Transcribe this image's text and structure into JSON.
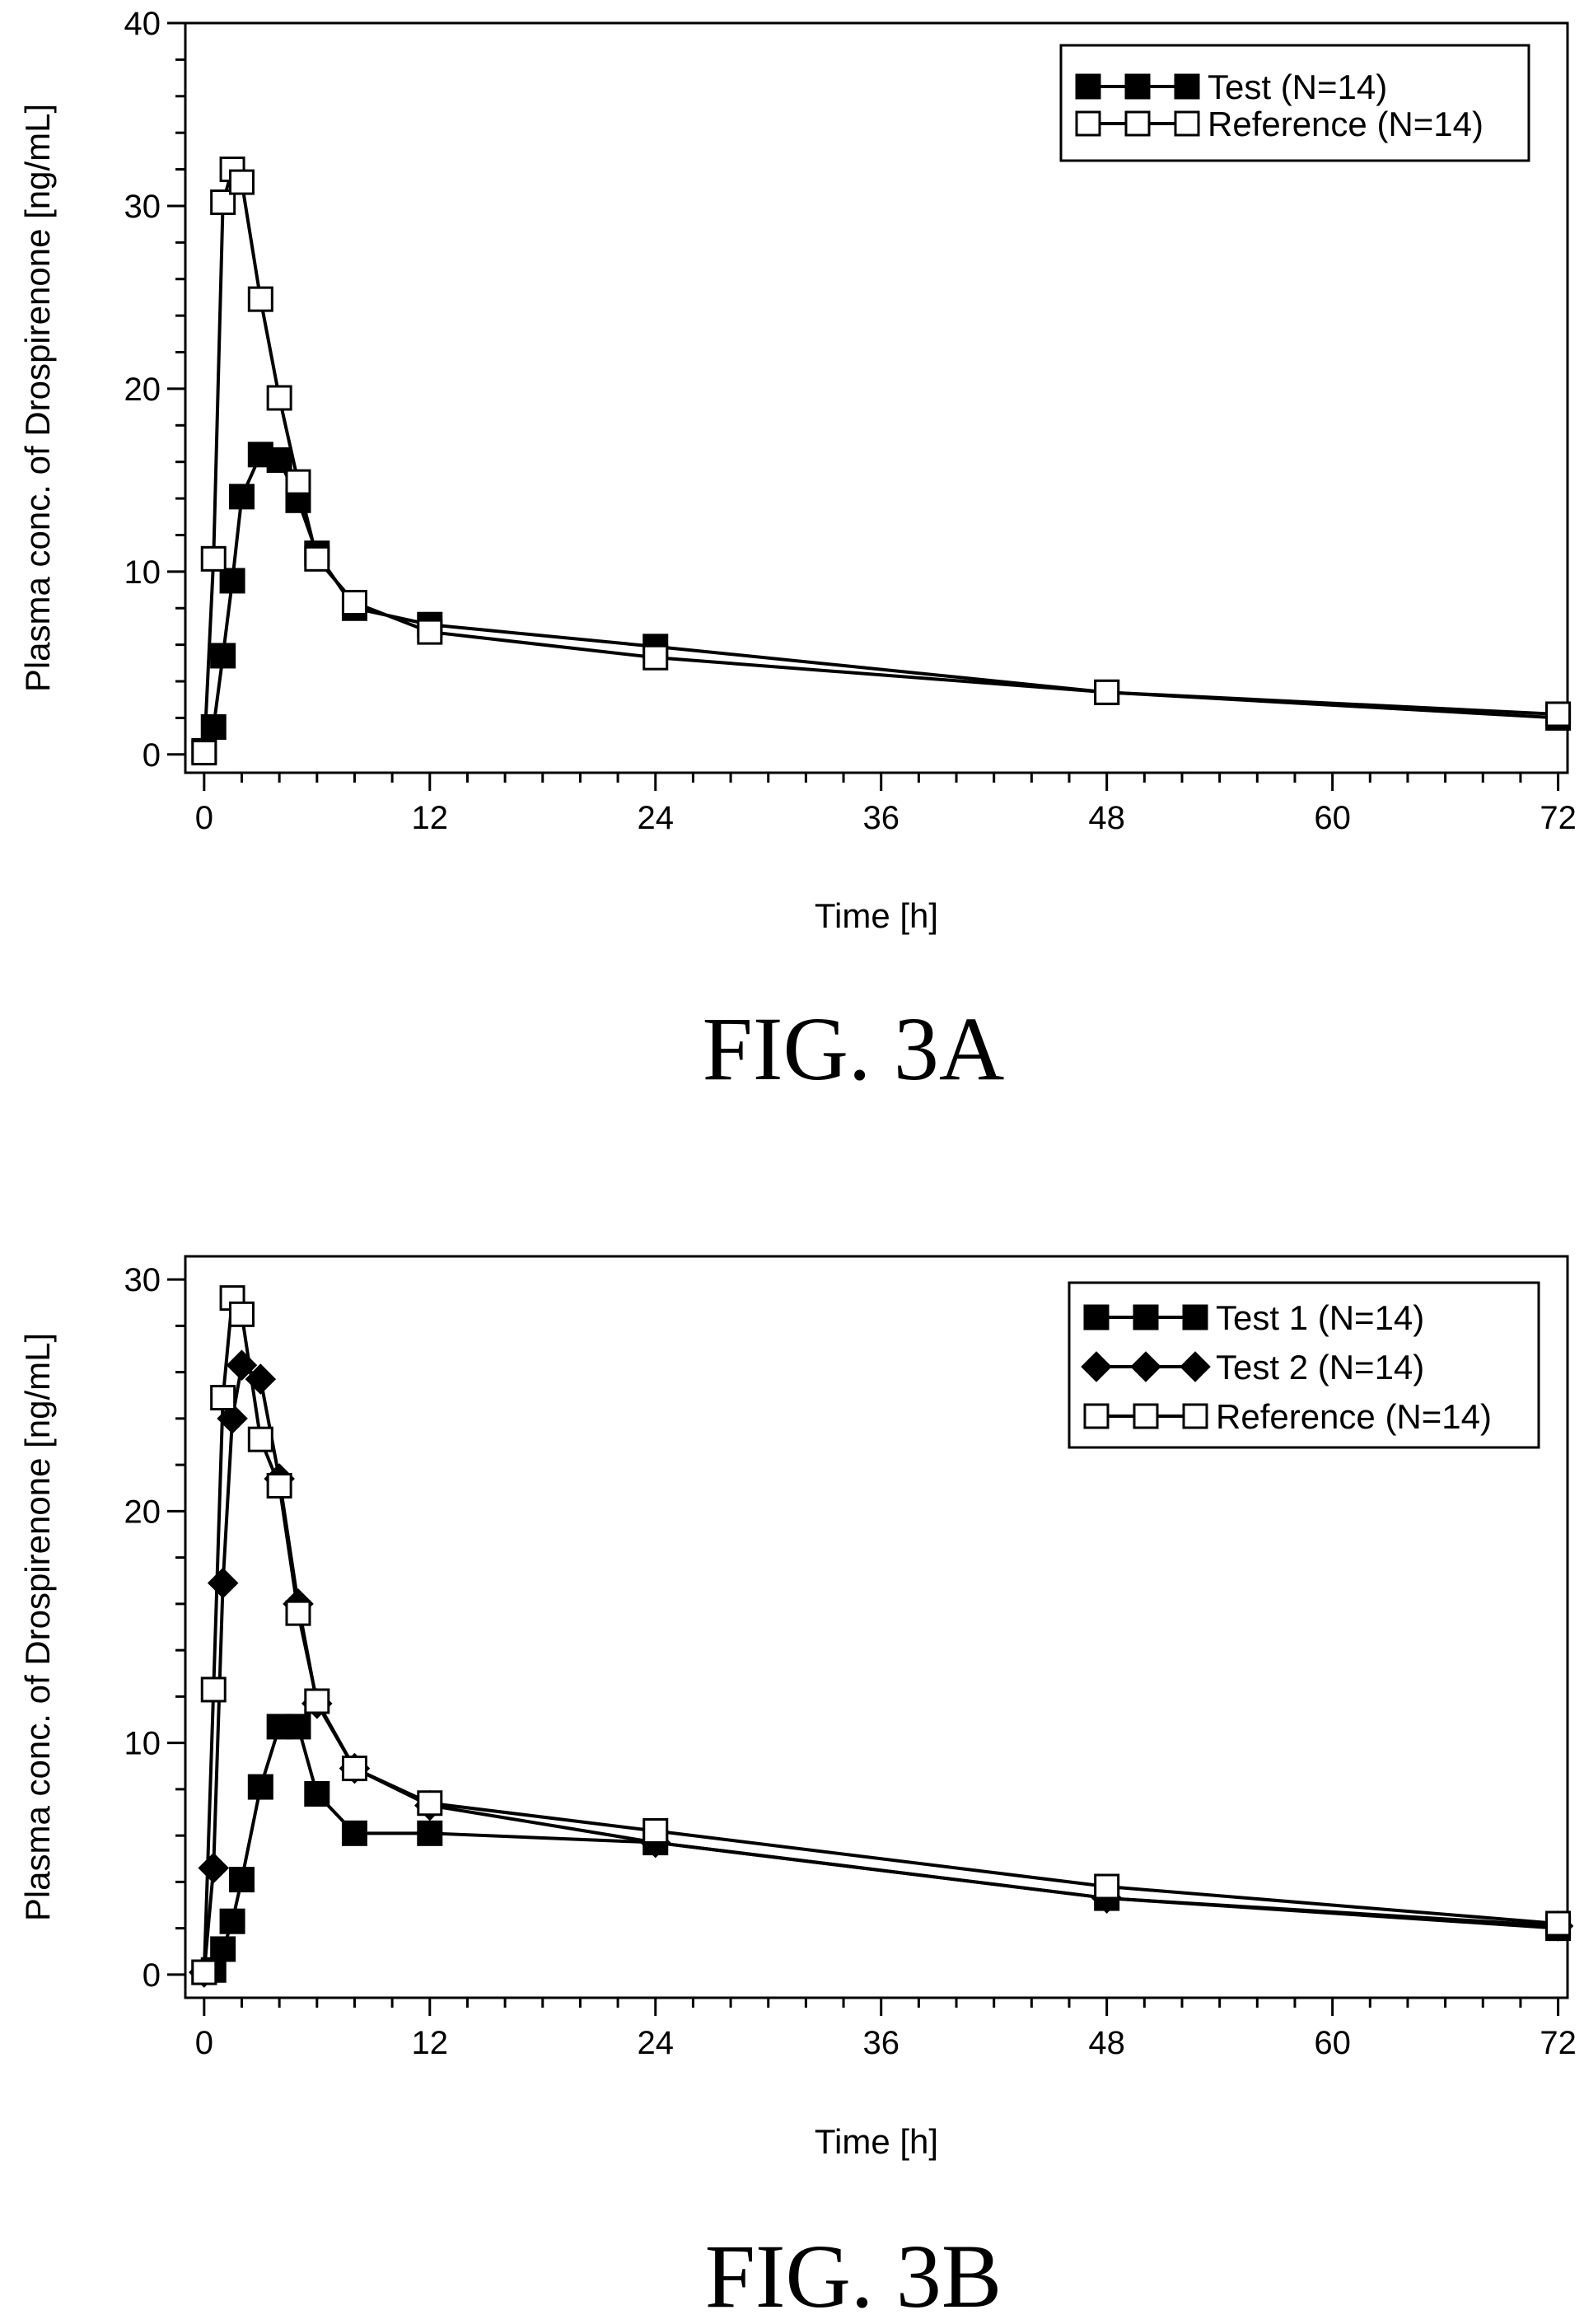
{
  "chart_data": [
    {
      "type": "line",
      "caption": "FIG. 3A",
      "xlabel": "Time [h]",
      "ylabel": "Plasma conc. of Drospirenone [ng/mL]",
      "xlim": [
        -1,
        72.5
      ],
      "ylim": [
        -1,
        40
      ],
      "xticks": [
        0,
        12,
        24,
        36,
        48,
        60,
        72
      ],
      "yticks": [
        0,
        10,
        20,
        30,
        40
      ],
      "legend_position": "top-right",
      "series": [
        {
          "name": "Test (N=14)",
          "marker": "filled-square",
          "x": [
            0,
            0.5,
            1,
            1.5,
            2,
            3,
            4,
            5,
            6,
            8,
            12,
            24,
            48,
            72
          ],
          "y": [
            0.2,
            1.5,
            5.4,
            9.5,
            14.1,
            16.4,
            16.1,
            13.9,
            11.0,
            8.0,
            7.1,
            5.9,
            3.4,
            2.0
          ]
        },
        {
          "name": "Reference (N=14)",
          "marker": "open-square",
          "x": [
            0,
            0.5,
            1,
            1.5,
            2,
            3,
            4,
            5,
            6,
            8,
            12,
            24,
            48,
            72
          ],
          "y": [
            0.1,
            10.7,
            30.2,
            32.0,
            31.3,
            24.9,
            19.5,
            14.9,
            10.7,
            8.3,
            6.7,
            5.3,
            3.4,
            2.2
          ]
        }
      ]
    },
    {
      "type": "line",
      "caption": "FIG. 3B",
      "xlabel": "Time [h]",
      "ylabel": "Plasma conc. of Drospirenone [ng/mL]",
      "xlim": [
        -1,
        72.5
      ],
      "ylim": [
        -1,
        31
      ],
      "xticks": [
        0,
        12,
        24,
        36,
        48,
        60,
        72
      ],
      "yticks": [
        0,
        10,
        20,
        30
      ],
      "legend_position": "top-right",
      "series": [
        {
          "name": "Test 1 (N=14)",
          "marker": "filled-square",
          "x": [
            0,
            0.5,
            1,
            1.5,
            2,
            3,
            4,
            5,
            6,
            8,
            12,
            24,
            48,
            72
          ],
          "y": [
            0.1,
            0.2,
            1.1,
            2.3,
            4.1,
            8.1,
            10.7,
            10.7,
            7.8,
            6.1,
            6.1,
            5.7,
            3.3,
            2.0
          ]
        },
        {
          "name": "Test 2 (N=14)",
          "marker": "filled-diamond",
          "x": [
            0,
            0.5,
            1,
            1.5,
            2,
            3,
            4,
            5,
            6,
            8,
            12,
            24,
            48,
            72
          ],
          "y": [
            0.1,
            4.6,
            16.9,
            24.0,
            26.3,
            25.7,
            21.4,
            16.0,
            11.7,
            8.9,
            7.3,
            5.7,
            3.3,
            2.1
          ]
        },
        {
          "name": "Reference (N=14)",
          "marker": "open-square",
          "x": [
            0,
            0.5,
            1,
            1.5,
            2,
            3,
            4,
            5,
            6,
            8,
            12,
            24,
            48,
            72
          ],
          "y": [
            0.1,
            12.3,
            24.9,
            29.2,
            28.5,
            23.1,
            21.1,
            15.6,
            11.8,
            8.9,
            7.4,
            6.2,
            3.8,
            2.2
          ]
        }
      ]
    }
  ]
}
